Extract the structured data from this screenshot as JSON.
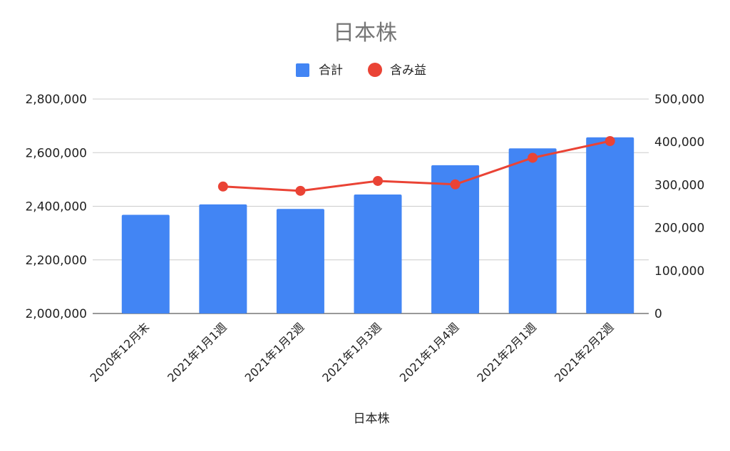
{
  "chart_data": {
    "type": "bar",
    "title": "日本株",
    "xlabel": "日本株",
    "ylabel": "",
    "categories": [
      "2020年12月末",
      "2021年1月1週",
      "2021年1月2週",
      "2021年1月3週",
      "2021年1月4週",
      "2021年2月1週",
      "2021年2月2週"
    ],
    "series": [
      {
        "name": "合計",
        "type": "bar",
        "axis": "left",
        "color": "#4285f4",
        "values": [
          2368000,
          2407000,
          2390000,
          2444000,
          2553000,
          2616000,
          2657000
        ]
      },
      {
        "name": "含み益",
        "type": "line",
        "axis": "right",
        "color": "#ea4335",
        "values": [
          null,
          296000,
          286000,
          309000,
          301000,
          363000,
          402000
        ]
      }
    ],
    "left_axis": {
      "min": 2000000,
      "max": 2800000,
      "ticks": [
        2000000,
        2200000,
        2400000,
        2600000,
        2800000
      ],
      "tick_labels": [
        "2,000,000",
        "2,200,000",
        "2,400,000",
        "2,600,000",
        "2,800,000"
      ]
    },
    "right_axis": {
      "min": 0,
      "max": 500000,
      "ticks": [
        0,
        100000,
        200000,
        300000,
        400000,
        500000
      ],
      "tick_labels": [
        "0",
        "100,000",
        "200,000",
        "300,000",
        "400,000",
        "500,000"
      ]
    },
    "grid": true,
    "legend_position": "top-center",
    "legend": [
      {
        "name": "合計",
        "marker": "square",
        "color": "#4285f4"
      },
      {
        "name": "含み益",
        "marker": "circle",
        "color": "#ea4335"
      }
    ]
  }
}
